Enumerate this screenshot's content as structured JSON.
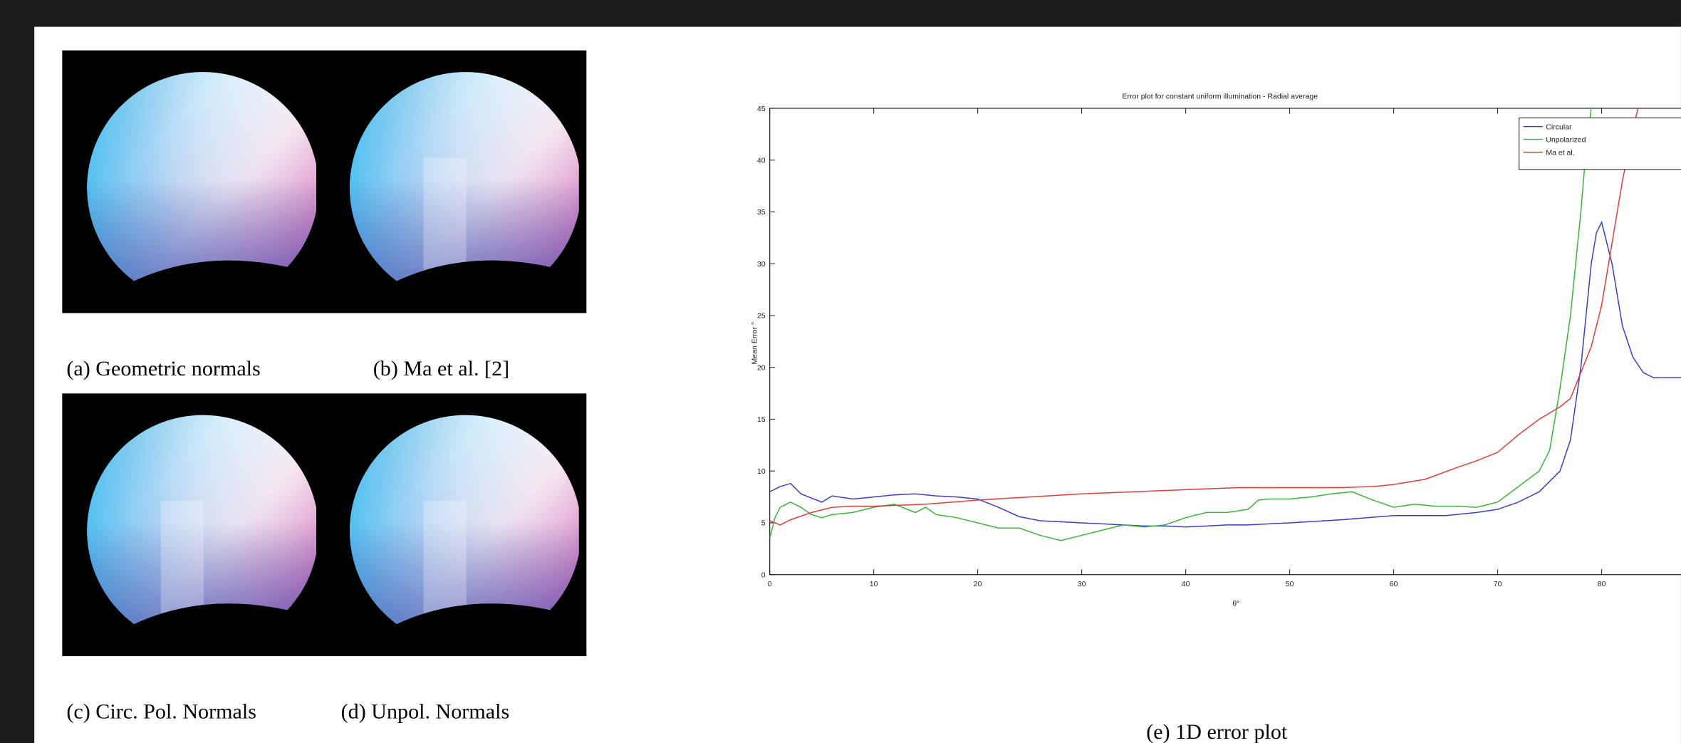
{
  "figure": {
    "panels": [
      "(a) Geometric normals",
      "(b) Ma et al. [2]",
      "(c) Circ. Pol. Normals",
      "(d) Unpol. Normals"
    ],
    "caption": "(e) 1D error plot"
  },
  "chart_data": {
    "type": "line",
    "title": "Error plot for constant uniform illumination - Radial average",
    "x_label": "θ°",
    "y_label": "Mean Error °",
    "xlim": [
      0,
      90
    ],
    "ylim": [
      0,
      45
    ],
    "xticks": [
      0,
      10,
      20,
      30,
      40,
      50,
      60,
      70,
      80
    ],
    "yticks": [
      0,
      5,
      10,
      15,
      20,
      25,
      30,
      35,
      40,
      45
    ],
    "legend": "upper right",
    "series": [
      {
        "name": "Circular",
        "color": "#3d3dc8",
        "x": [
          0,
          1,
          2,
          3,
          5,
          6,
          8,
          10,
          12,
          14,
          16,
          18,
          20,
          22,
          24,
          26,
          28,
          30,
          32,
          34,
          36,
          38,
          40,
          42,
          44,
          46,
          48,
          50,
          55,
          60,
          65,
          68,
          70,
          72,
          74,
          76,
          77,
          78,
          79,
          79.5,
          80,
          81,
          82,
          83,
          84,
          85,
          88,
          90
        ],
        "values": [
          8,
          8.5,
          8.8,
          7.8,
          7,
          7.6,
          7.3,
          7.5,
          7.7,
          7.8,
          7.6,
          7.5,
          7.3,
          6.5,
          5.6,
          5.2,
          5.1,
          5,
          4.9,
          4.8,
          4.7,
          4.7,
          4.6,
          4.7,
          4.8,
          4.8,
          4.9,
          5,
          5.3,
          5.7,
          5.7,
          6,
          6.3,
          7,
          8,
          10,
          13,
          20,
          30,
          33,
          34,
          30,
          24,
          21,
          19.5,
          19,
          19,
          19
        ]
      },
      {
        "name": "Unpolarized",
        "color": "#3cb43c",
        "x": [
          0,
          0.5,
          1,
          2,
          3,
          4,
          5,
          6,
          8,
          10,
          12,
          14,
          15,
          16,
          18,
          20,
          22,
          24,
          26,
          28,
          30,
          32,
          34,
          36,
          38,
          40,
          42,
          44,
          46,
          47,
          48,
          50,
          52,
          54,
          56,
          58,
          60,
          62,
          64,
          66,
          68,
          70,
          72,
          74,
          75,
          76,
          77,
          78,
          78.5,
          79
        ],
        "values": [
          3.5,
          5.5,
          6.5,
          7,
          6.5,
          5.8,
          5.5,
          5.8,
          6,
          6.5,
          6.8,
          6,
          6.5,
          5.8,
          5.5,
          5,
          4.5,
          4.5,
          3.8,
          3.3,
          3.8,
          4.3,
          4.8,
          4.6,
          4.8,
          5.5,
          6,
          6,
          6.3,
          7.2,
          7.3,
          7.3,
          7.5,
          7.8,
          8,
          7.2,
          6.5,
          6.8,
          6.6,
          6.6,
          6.5,
          7,
          8.5,
          10,
          12,
          18,
          25,
          35,
          41,
          45
        ]
      },
      {
        "name": "Ma et al.",
        "color": "#e03c3c",
        "x": [
          0,
          1,
          2,
          4,
          6,
          8,
          10,
          15,
          20,
          25,
          30,
          35,
          40,
          45,
          50,
          55,
          58,
          60,
          63,
          66,
          68,
          70,
          72,
          74,
          76,
          77,
          78,
          79,
          80,
          81,
          82,
          83,
          83.5
        ],
        "values": [
          5.2,
          4.8,
          5.3,
          6,
          6.5,
          6.6,
          6.6,
          6.8,
          7.2,
          7.5,
          7.8,
          8,
          8.2,
          8.4,
          8.4,
          8.4,
          8.5,
          8.7,
          9.2,
          10.3,
          11,
          11.8,
          13.5,
          15,
          16.2,
          17,
          19.5,
          22,
          26,
          32,
          38,
          43,
          45
        ]
      }
    ]
  }
}
